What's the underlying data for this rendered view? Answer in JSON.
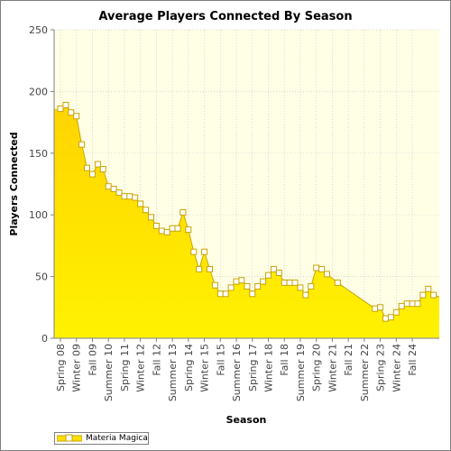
{
  "chart_data": {
    "type": "area",
    "title": "Average Players Connected By Season",
    "xlabel": "Season",
    "ylabel": "Players Connected",
    "ylim": [
      0,
      250
    ],
    "yticks": [
      0,
      50,
      100,
      150,
      200,
      250
    ],
    "grid": true,
    "legend_position": "bottom-left",
    "series": [
      {
        "name": "Materia Magica",
        "color": "#ffe000",
        "values": [
          186,
          189,
          183,
          180,
          157,
          138,
          133,
          141,
          137,
          123,
          121,
          118,
          115,
          115,
          114,
          109,
          104,
          98,
          91,
          87,
          86,
          89,
          89,
          102,
          88,
          70,
          56,
          70,
          56,
          43,
          36,
          36,
          41,
          46,
          47,
          42,
          36,
          42,
          46,
          51,
          56,
          53,
          45,
          45,
          45,
          41,
          35,
          42,
          57,
          56,
          52,
          45,
          24,
          25,
          16,
          17,
          21,
          26,
          28,
          28,
          28,
          35,
          40,
          35
        ]
      }
    ],
    "points": [
      {
        "x": 0,
        "y": 186
      },
      {
        "x": 1,
        "y": 189
      },
      {
        "x": 2,
        "y": 183
      },
      {
        "x": 3,
        "y": 180
      },
      {
        "x": 4,
        "y": 157
      },
      {
        "x": 5,
        "y": 138
      },
      {
        "x": 6,
        "y": 133
      },
      {
        "x": 7,
        "y": 141
      },
      {
        "x": 8,
        "y": 137
      },
      {
        "x": 9,
        "y": 123
      },
      {
        "x": 10,
        "y": 121
      },
      {
        "x": 11,
        "y": 118
      },
      {
        "x": 12,
        "y": 115
      },
      {
        "x": 13,
        "y": 115
      },
      {
        "x": 14,
        "y": 114
      },
      {
        "x": 15,
        "y": 109
      },
      {
        "x": 16,
        "y": 104
      },
      {
        "x": 17,
        "y": 98
      },
      {
        "x": 18,
        "y": 91
      },
      {
        "x": 19,
        "y": 87
      },
      {
        "x": 20,
        "y": 86
      },
      {
        "x": 21,
        "y": 89
      },
      {
        "x": 22,
        "y": 89
      },
      {
        "x": 23,
        "y": 102
      },
      {
        "x": 24,
        "y": 88
      },
      {
        "x": 25,
        "y": 70
      },
      {
        "x": 26,
        "y": 56
      },
      {
        "x": 27,
        "y": 70
      },
      {
        "x": 28,
        "y": 56
      },
      {
        "x": 29,
        "y": 43
      },
      {
        "x": 30,
        "y": 36
      },
      {
        "x": 31,
        "y": 36
      },
      {
        "x": 32,
        "y": 41
      },
      {
        "x": 33,
        "y": 46
      },
      {
        "x": 34,
        "y": 47
      },
      {
        "x": 35,
        "y": 42
      },
      {
        "x": 36,
        "y": 36
      },
      {
        "x": 37,
        "y": 42
      },
      {
        "x": 38,
        "y": 46
      },
      {
        "x": 39,
        "y": 51
      },
      {
        "x": 40,
        "y": 56
      },
      {
        "x": 41,
        "y": 53
      },
      {
        "x": 42,
        "y": 45
      },
      {
        "x": 43,
        "y": 45
      },
      {
        "x": 44,
        "y": 45
      },
      {
        "x": 45,
        "y": 41
      },
      {
        "x": 46,
        "y": 35
      },
      {
        "x": 47,
        "y": 42
      },
      {
        "x": 48,
        "y": 57
      },
      {
        "x": 49,
        "y": 56
      },
      {
        "x": 50,
        "y": 52
      },
      {
        "x": 52,
        "y": 45
      },
      {
        "x": 59,
        "y": 24
      },
      {
        "x": 60,
        "y": 25
      },
      {
        "x": 61,
        "y": 16
      },
      {
        "x": 62,
        "y": 17
      },
      {
        "x": 63,
        "y": 21
      },
      {
        "x": 64,
        "y": 26
      },
      {
        "x": 65,
        "y": 28
      },
      {
        "x": 66,
        "y": 28
      },
      {
        "x": 67,
        "y": 28
      },
      {
        "x": 68,
        "y": 35
      },
      {
        "x": 69,
        "y": 40
      },
      {
        "x": 70,
        "y": 35
      }
    ],
    "x_tick_labels": [
      {
        "x": 0,
        "label": "Spring 08"
      },
      {
        "x": 3,
        "label": "Winter 09"
      },
      {
        "x": 6,
        "label": "Fall 09"
      },
      {
        "x": 9,
        "label": "Summer 10"
      },
      {
        "x": 12,
        "label": "Spring 11"
      },
      {
        "x": 15,
        "label": "Winter 12"
      },
      {
        "x": 18,
        "label": "Fall 12"
      },
      {
        "x": 21,
        "label": "Summer 13"
      },
      {
        "x": 24,
        "label": "Spring 14"
      },
      {
        "x": 27,
        "label": "Winter 15"
      },
      {
        "x": 30,
        "label": "Fall 15"
      },
      {
        "x": 33,
        "label": "Summer 16"
      },
      {
        "x": 36,
        "label": "Spring 17"
      },
      {
        "x": 39,
        "label": "Winter 18"
      },
      {
        "x": 42,
        "label": "Fall 18"
      },
      {
        "x": 45,
        "label": "Summer 19"
      },
      {
        "x": 48,
        "label": "Spring 20"
      },
      {
        "x": 51,
        "label": "Winter 21"
      },
      {
        "x": 54,
        "label": "Fall 21"
      },
      {
        "x": 57,
        "label": "Summer 22"
      },
      {
        "x": 60,
        "label": "Spring 23"
      },
      {
        "x": 63,
        "label": "Winter 24"
      },
      {
        "x": 66,
        "label": "Fall 24"
      }
    ],
    "xlim": [
      0,
      70
    ]
  },
  "colors": {
    "plot_background": "#ffffe6",
    "fill": "#ffe000",
    "line": "#c8a400",
    "marker_fill": "#ffffff",
    "gridline": "#cccccc"
  }
}
